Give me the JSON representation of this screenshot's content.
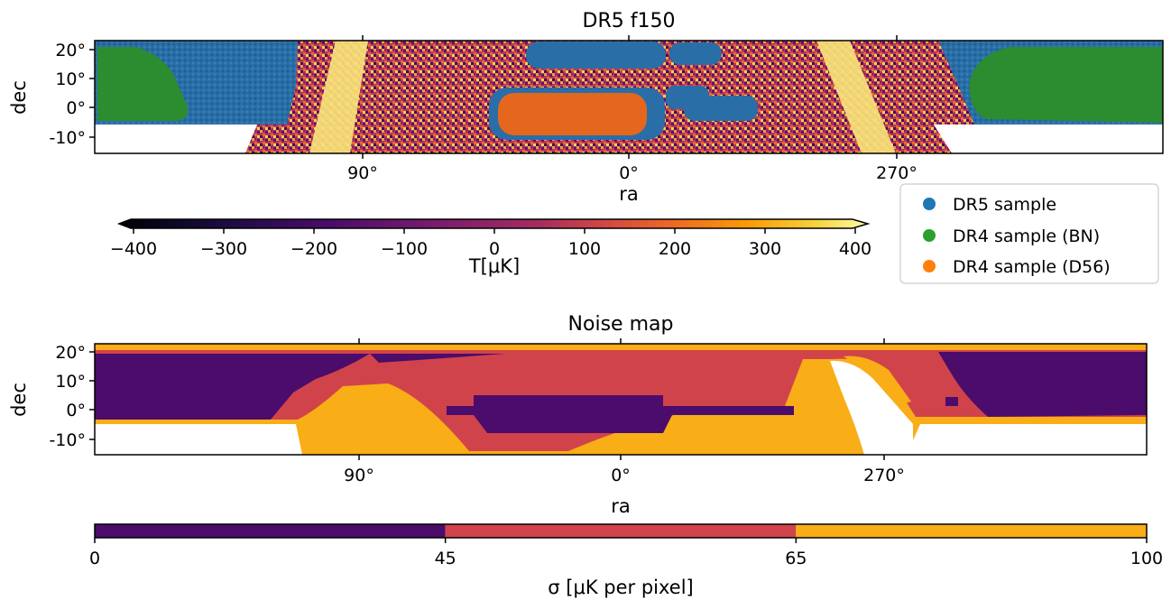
{
  "chart_data": [
    {
      "type": "heatmap",
      "title": "DR5 f150",
      "xlabel": "ra",
      "ylabel": "dec",
      "x_ticks": [
        "90°",
        "0°",
        "270°"
      ],
      "y_ticks": [
        "20°",
        "10°",
        "0°",
        "-10°"
      ],
      "colorbar": {
        "label": "T[μK]",
        "ticks": [
          "−400",
          "−300",
          "−200",
          "−100",
          "0",
          "100",
          "200",
          "300",
          "400"
        ],
        "range": [
          -400,
          400
        ],
        "colormap": "inferno",
        "extend": "both"
      },
      "legend": {
        "placement": "right",
        "entries": [
          {
            "label": "DR5 sample",
            "color": "#1f77b4"
          },
          {
            "label": "DR4 sample (BN)",
            "color": "#2ca02c"
          },
          {
            "label": "DR4 sample (D56)",
            "color": "#ff7f0e"
          }
        ]
      }
    },
    {
      "type": "heatmap",
      "title": "Noise map",
      "xlabel": "ra",
      "ylabel": "dec",
      "x_ticks": [
        "90°",
        "0°",
        "270°"
      ],
      "y_ticks": [
        "20°",
        "10°",
        "0°",
        "-10°"
      ],
      "colorbar": {
        "label": "σ [μK per pixel]",
        "ticks": [
          "0",
          "45",
          "65",
          "100"
        ],
        "bins": [
          {
            "from": 0,
            "to": 45,
            "color": "#4b0c6b"
          },
          {
            "from": 45,
            "to": 65,
            "color": "#d0434b"
          },
          {
            "from": 65,
            "to": 100,
            "color": "#f9ad16"
          }
        ]
      }
    }
  ]
}
